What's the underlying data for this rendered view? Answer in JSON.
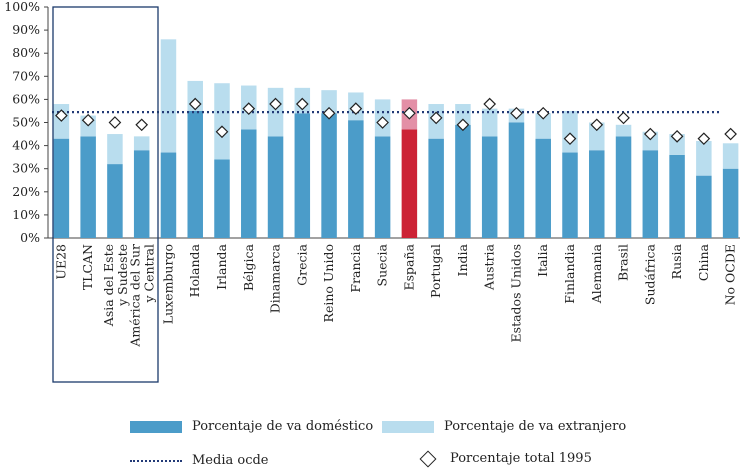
{
  "chart_data": {
    "type": "bar",
    "stacked": true,
    "ylim": [
      0,
      100
    ],
    "yticks": [
      "0%",
      "10%",
      "20%",
      "30%",
      "40%",
      "50%",
      "60%",
      "70%",
      "80%",
      "90%",
      "100%"
    ],
    "ytick_values": [
      0,
      10,
      20,
      30,
      40,
      50,
      60,
      70,
      80,
      90,
      100
    ],
    "categories": [
      "UE28",
      "TLCAN",
      "Asia del Este y Sudeste",
      "América del Sur y Central",
      "Luxemburgo",
      "Holanda",
      "Irlanda",
      "Bélgica",
      "Dinamarca",
      "Grecia",
      "Reino Unido",
      "Francia",
      "Suecia",
      "España",
      "Portugal",
      "India",
      "Austria",
      "Estados Unidos",
      "Italia",
      "Finlandia",
      "Alemania",
      "Brasil",
      "Sudáfrica",
      "Rusia",
      "China",
      "No OCDE"
    ],
    "series": [
      {
        "name": "Porcentaje de VA doméstico",
        "color": "#4b9cc9",
        "values": [
          43,
          44,
          32,
          38,
          37,
          55,
          34,
          47,
          44,
          54,
          54,
          51,
          44,
          47,
          43,
          49,
          44,
          50,
          43,
          37,
          38,
          44,
          38,
          36,
          27,
          30
        ]
      },
      {
        "name": "Porcentaje de VA extranjero",
        "color": "#b9ddee",
        "values": [
          15,
          9,
          13,
          6,
          49,
          13,
          33,
          19,
          21,
          11,
          10,
          12,
          16,
          13,
          15,
          9,
          12,
          6,
          11,
          18,
          12,
          5,
          8,
          9,
          15,
          11
        ]
      },
      {
        "name": "Porcentaje total 1995",
        "type": "marker",
        "values": [
          53,
          51,
          50,
          49,
          null,
          58,
          46,
          56,
          58,
          58,
          54,
          56,
          50,
          54,
          52,
          49,
          58,
          54,
          54,
          43,
          49,
          52,
          45,
          44,
          43,
          45
        ]
      }
    ],
    "highlight": {
      "category": "España",
      "domestic_color": "#cc2235",
      "foreign_color": "#e38fa6"
    },
    "reference_line": {
      "name": "Media OCDE",
      "value": 54.5
    },
    "grouped_box": [
      "UE28",
      "TLCAN",
      "Asia del Este y Sudeste",
      "América del Sur y Central"
    ],
    "title": "",
    "xlabel": "",
    "ylabel": ""
  },
  "legend": {
    "domestic": "Porcentaje de va doméstico",
    "foreign": "Porcentaje de va extranjero",
    "mean": "Media ocde",
    "total1995": "Porcentaje total 1995"
  }
}
